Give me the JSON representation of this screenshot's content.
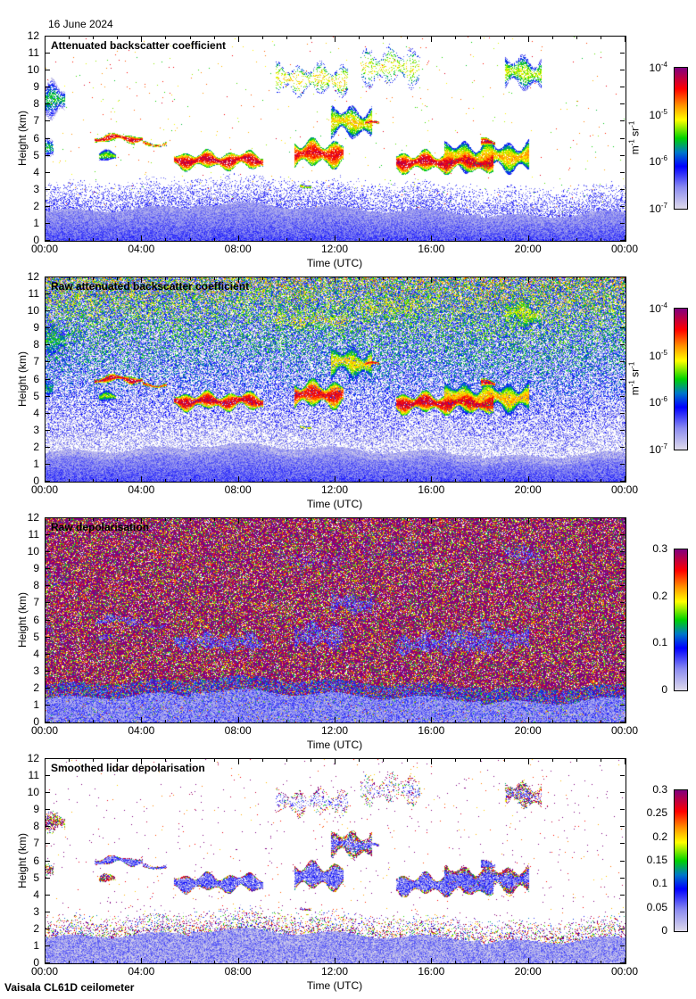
{
  "date_label": "16 June 2024",
  "footer": "Vaisala CL61D ceilometer",
  "chart_data": [
    {
      "type": "heatmap",
      "kind": "attenuated_backscatter",
      "title": "Attenuated backscatter coefficient",
      "xlabel": "Time (UTC)",
      "ylabel": "Height (km)",
      "xlim": [
        0,
        24
      ],
      "ylim": [
        0,
        12
      ],
      "x_tick_labels": [
        "00:00",
        "04:00",
        "08:00",
        "12:00",
        "16:00",
        "20:00",
        "00:00"
      ],
      "y_tick_labels": [
        "0",
        "1",
        "2",
        "3",
        "4",
        "5",
        "6",
        "7",
        "8",
        "9",
        "10",
        "11",
        "12"
      ],
      "colorbar": {
        "scale": "log",
        "range": [
          1e-07,
          0.0001
        ],
        "ticks": [
          {
            "base": "10",
            "exp": "-4"
          },
          {
            "base": "10",
            "exp": "-5"
          },
          {
            "base": "10",
            "exp": "-6"
          },
          {
            "base": "10",
            "exp": "-7"
          }
        ],
        "label": {
          "m": "m",
          "m_exp": "-1",
          "sr": " sr",
          "sr_exp": "-1"
        }
      }
    },
    {
      "type": "heatmap",
      "kind": "raw_backscatter",
      "title": "Raw attenuated backscatter coefficient",
      "xlabel": "Time (UTC)",
      "ylabel": "Height (km)",
      "xlim": [
        0,
        24
      ],
      "ylim": [
        0,
        12
      ],
      "x_tick_labels": [
        "00:00",
        "04:00",
        "08:00",
        "12:00",
        "16:00",
        "20:00",
        "00:00"
      ],
      "y_tick_labels": [
        "0",
        "1",
        "2",
        "3",
        "4",
        "5",
        "6",
        "7",
        "8",
        "9",
        "10",
        "11",
        "12"
      ],
      "colorbar": {
        "scale": "log",
        "range": [
          1e-07,
          0.0001
        ],
        "ticks": [
          {
            "base": "10",
            "exp": "-4"
          },
          {
            "base": "10",
            "exp": "-5"
          },
          {
            "base": "10",
            "exp": "-6"
          },
          {
            "base": "10",
            "exp": "-7"
          }
        ],
        "label": {
          "m": "m",
          "m_exp": "-1",
          "sr": " sr",
          "sr_exp": "-1"
        }
      }
    },
    {
      "type": "heatmap",
      "kind": "raw_depol",
      "title": "Raw depolarisation",
      "xlabel": "Time (UTC)",
      "ylabel": "Height (km)",
      "xlim": [
        0,
        24
      ],
      "ylim": [
        0,
        12
      ],
      "x_tick_labels": [
        "00:00",
        "04:00",
        "08:00",
        "12:00",
        "16:00",
        "20:00",
        "00:00"
      ],
      "y_tick_labels": [
        "0",
        "1",
        "2",
        "3",
        "4",
        "5",
        "6",
        "7",
        "8",
        "9",
        "10",
        "11",
        "12"
      ],
      "colorbar": {
        "scale": "linear",
        "range": [
          0,
          0.3
        ],
        "ticks": [
          {
            "base": "0.3"
          },
          {
            "base": "0.2"
          },
          {
            "base": "0.1"
          },
          {
            "base": "0"
          }
        ]
      }
    },
    {
      "type": "heatmap",
      "kind": "smoothed_depol",
      "title": "Smoothed lidar depolarisation",
      "xlabel": "Time (UTC)",
      "ylabel": "Height (km)",
      "xlim": [
        0,
        24
      ],
      "ylim": [
        0,
        12
      ],
      "x_tick_labels": [
        "00:00",
        "04:00",
        "08:00",
        "12:00",
        "16:00",
        "20:00",
        "00:00"
      ],
      "y_tick_labels": [
        "0",
        "1",
        "2",
        "3",
        "4",
        "5",
        "6",
        "7",
        "8",
        "9",
        "10",
        "11",
        "12"
      ],
      "colorbar": {
        "scale": "linear",
        "range": [
          0,
          0.3
        ],
        "ticks": [
          {
            "base": "0.3"
          },
          {
            "base": "0.25"
          },
          {
            "base": "0.2"
          },
          {
            "base": "0.15"
          },
          {
            "base": "0.1"
          },
          {
            "base": "0.05"
          },
          {
            "base": "0"
          }
        ]
      }
    }
  ],
  "cloud_layers_hours_km_log10": [
    {
      "t0": 0.0,
      "t1": 0.8,
      "h0": 7.0,
      "h1": 9.5,
      "peak": -5.6,
      "density": 0.7
    },
    {
      "t0": 0.0,
      "t1": 0.3,
      "h0": 4.8,
      "h1": 6.0,
      "peak": -5.6,
      "density": 0.7
    },
    {
      "t0": 2.0,
      "t1": 4.0,
      "h0": 5.8,
      "h1": 6.3,
      "peak": -4.3,
      "density": 0.9
    },
    {
      "t0": 2.2,
      "t1": 2.9,
      "h0": 4.6,
      "h1": 5.3,
      "peak": -5.3,
      "density": 0.9
    },
    {
      "t0": 4.0,
      "t1": 5.0,
      "h0": 5.6,
      "h1": 5.85,
      "peak": -4.6,
      "density": 0.8
    },
    {
      "t0": 5.3,
      "t1": 9.0,
      "h0": 4.2,
      "h1": 5.3,
      "peak": -4.3,
      "density": 0.9
    },
    {
      "t0": 10.3,
      "t1": 12.3,
      "h0": 4.3,
      "h1": 6.0,
      "peak": -4.4,
      "density": 0.9
    },
    {
      "t0": 11.8,
      "t1": 13.5,
      "h0": 6.0,
      "h1": 8.0,
      "peak": -5.0,
      "density": 0.8
    },
    {
      "t0": 13.2,
      "t1": 13.8,
      "h0": 6.8,
      "h1": 7.0,
      "peak": -4.3,
      "density": 0.9
    },
    {
      "t0": 10.5,
      "t1": 11.0,
      "h0": 3.2,
      "h1": 3.4,
      "peak": -5.0,
      "density": 0.8
    },
    {
      "t0": 9.5,
      "t1": 12.5,
      "h0": 8.5,
      "h1": 10.5,
      "peak": -5.0,
      "density": 0.25
    },
    {
      "t0": 14.5,
      "t1": 18.5,
      "h0": 4.0,
      "h1": 5.3,
      "peak": -4.3,
      "density": 0.9
    },
    {
      "t0": 16.5,
      "t1": 20.0,
      "h0": 4.0,
      "h1": 5.9,
      "peak": -4.9,
      "density": 0.9
    },
    {
      "t0": 18.0,
      "t1": 18.6,
      "h0": 5.5,
      "h1": 6.0,
      "peak": -4.3,
      "density": 0.9
    },
    {
      "t0": 19.0,
      "t1": 20.5,
      "h0": 8.8,
      "h1": 11.0,
      "peak": -5.2,
      "density": 0.6
    },
    {
      "t0": 13.0,
      "t1": 15.5,
      "h0": 9.0,
      "h1": 11.5,
      "peak": -5.1,
      "density": 0.2
    }
  ],
  "colors": {
    "axis": "#000000",
    "background": "#ffffff"
  }
}
